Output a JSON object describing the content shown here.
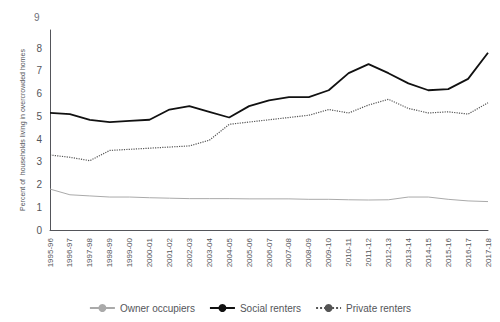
{
  "chart_data": {
    "type": "line",
    "categories": [
      "1995-96",
      "1996-97",
      "1997-98",
      "1998-99",
      "1999-00",
      "2000-01",
      "2001-02",
      "2002-03",
      "2003-04",
      "2004-05",
      "2005-06",
      "2006-07",
      "2007-08",
      "2008-09",
      "2009-10",
      "2010-11",
      "2011-12",
      "2012-13",
      "2013-14",
      "2014-15",
      "2015-16",
      "2016-17",
      "2017-18"
    ],
    "series": [
      {
        "name": "Owner occupiers",
        "color": "#aaaaaa",
        "line_style": "solid",
        "values": [
          1.8,
          1.55,
          1.5,
          1.45,
          1.45,
          1.42,
          1.4,
          1.38,
          1.38,
          1.38,
          1.37,
          1.37,
          1.37,
          1.35,
          1.35,
          1.33,
          1.32,
          1.33,
          1.45,
          1.45,
          1.35,
          1.28,
          1.25
        ]
      },
      {
        "name": "Social renters",
        "color": "#111111",
        "line_style": "solid",
        "values": [
          5.15,
          5.1,
          4.85,
          4.75,
          4.8,
          4.85,
          5.3,
          5.45,
          5.2,
          4.95,
          5.45,
          5.7,
          5.85,
          5.85,
          6.15,
          6.9,
          7.3,
          6.9,
          6.45,
          6.15,
          6.2,
          6.65,
          7.8
        ]
      },
      {
        "name": "Private renters",
        "color": "#555555",
        "line_style": "dotted",
        "values": [
          3.3,
          3.2,
          3.05,
          3.5,
          3.55,
          3.6,
          3.65,
          3.7,
          3.95,
          4.65,
          4.75,
          4.85,
          4.95,
          5.05,
          5.3,
          5.15,
          5.5,
          5.75,
          5.35,
          5.15,
          5.2,
          5.1,
          5.6
        ]
      }
    ],
    "ylabel": "Percent of  households living in overcrowded homes",
    "ylim": [
      0,
      8.8
    ],
    "yticks": [
      0,
      1,
      2,
      3,
      4,
      5,
      6,
      7,
      8
    ],
    "annotations": [
      "9"
    ],
    "legend": "bottom",
    "grid": false
  }
}
